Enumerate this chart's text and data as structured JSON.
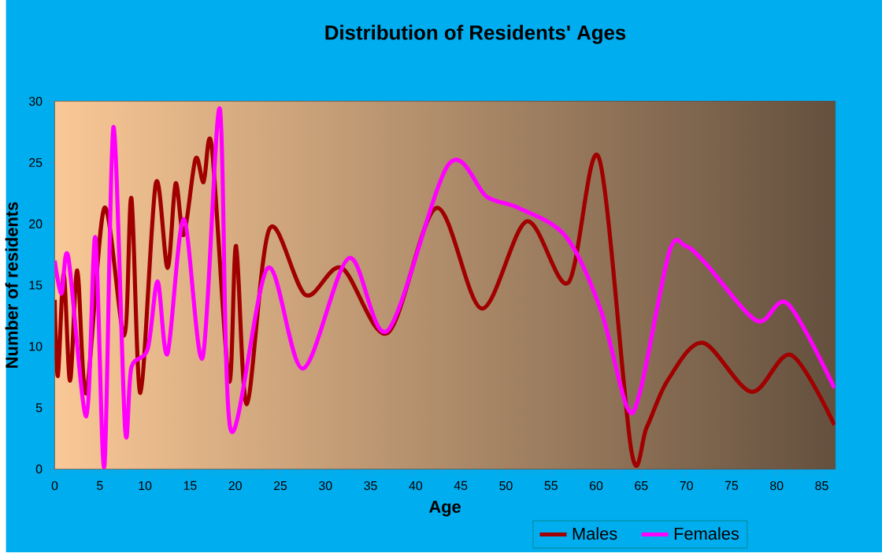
{
  "chart_data": {
    "type": "line",
    "title": "Distribution of Residents' Ages",
    "xlabel": "Age",
    "ylabel": "Number of residents",
    "xlim": [
      0,
      86.5
    ],
    "ylim": [
      0,
      30
    ],
    "xticks": [
      0,
      5,
      10,
      15,
      20,
      25,
      30,
      35,
      40,
      45,
      50,
      55,
      60,
      65,
      70,
      75,
      80,
      85
    ],
    "yticks": [
      0,
      5,
      10,
      15,
      20,
      25,
      30
    ],
    "grid": true,
    "legend": "bottom",
    "series": [
      {
        "name": "Males",
        "color": "#a00000",
        "x": [
          0,
          0.35,
          1,
          1.7,
          2.5,
          3.5,
          5.5,
          7.7,
          8.5,
          9.5,
          11.2,
          12.5,
          13.4,
          14.3,
          15.6,
          16.5,
          17.4,
          19.3,
          20.1,
          21.3,
          23.8,
          27.8,
          31.8,
          36.9,
          42.3,
          47.3,
          52.3,
          56.9,
          60.3,
          63.9,
          65.6,
          67.9,
          71.8,
          77.2,
          81.6,
          86.4
        ],
        "values": [
          13.8,
          7.6,
          15.9,
          7.2,
          16.2,
          6.2,
          21.3,
          10.9,
          22.1,
          6.2,
          23.3,
          16.4,
          23.3,
          19.1,
          25.3,
          23.4,
          26.3,
          7.2,
          18.2,
          5.3,
          19.6,
          14.2,
          16.4,
          11.1,
          21.3,
          13.1,
          20.2,
          15.2,
          25.4,
          1.5,
          3.4,
          7.2,
          10.3,
          6.3,
          9.3,
          3.6
        ]
      },
      {
        "name": "Females",
        "color": "#ff00ff",
        "x": [
          0,
          0.75,
          1.5,
          3.5,
          4.5,
          5.5,
          6.5,
          7.8,
          8.5,
          10.3,
          11.4,
          12.5,
          14.3,
          16.4,
          18.3,
          19.5,
          23.6,
          27.5,
          32.6,
          36.9,
          43.6,
          47.9,
          51.4,
          56.6,
          60.5,
          63.4,
          64.9,
          68.1,
          69.9,
          72.1,
          77.8,
          81.2,
          86.4
        ],
        "values": [
          17.0,
          14.3,
          17.3,
          4.3,
          18.9,
          0.2,
          27.9,
          3.3,
          8.3,
          9.8,
          15.3,
          9.4,
          20.4,
          9.1,
          29.4,
          3.2,
          16.4,
          8.2,
          17.2,
          11.3,
          24.8,
          22.2,
          21.3,
          19.0,
          13.0,
          5.1,
          6.4,
          17.7,
          18.2,
          16.8,
          12.1,
          13.5,
          6.6
        ]
      }
    ]
  }
}
